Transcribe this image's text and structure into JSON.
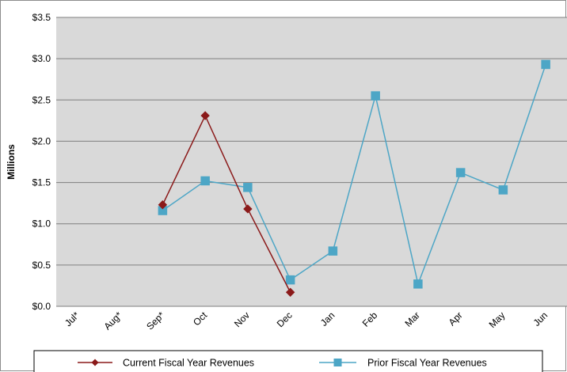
{
  "chart_data": {
    "type": "line",
    "categories": [
      "Jul*",
      "Aug*",
      "Sep*",
      "Oct",
      "Nov",
      "Dec",
      "Jan",
      "Feb",
      "Mar",
      "Apr",
      "May",
      "Jun"
    ],
    "ylabel": "Millions",
    "xlabel": "",
    "title": "",
    "ylim": [
      0,
      3.5
    ],
    "ytick_values": [
      0,
      0.5,
      1.0,
      1.5,
      2.0,
      2.5,
      3.0,
      3.5
    ],
    "ytick_labels": [
      "$0.0",
      "$0.5",
      "$1.0",
      "$1.5",
      "$2.0",
      "$2.5",
      "$3.0",
      "$3.5"
    ],
    "grid": "horizontal",
    "legend_position": "bottom",
    "series": [
      {
        "name": "Current Fiscal Year Revenues",
        "marker": "diamond",
        "color": "#8b1a1a",
        "values": [
          null,
          null,
          1.23,
          2.31,
          1.18,
          0.17,
          null,
          null,
          null,
          null,
          null,
          null
        ]
      },
      {
        "name": "Prior Fiscal Year Revenues",
        "marker": "square",
        "color": "#4da6c6",
        "values": [
          null,
          null,
          1.16,
          1.52,
          1.44,
          0.32,
          0.67,
          2.55,
          0.27,
          1.62,
          1.41,
          2.93
        ]
      }
    ]
  },
  "colors": {
    "plot_background": "#d9d9d9",
    "page_background": "#ffffff",
    "gridline": "#7f7f7f",
    "border": "#8c8c8c",
    "legend_border": "#000000"
  }
}
